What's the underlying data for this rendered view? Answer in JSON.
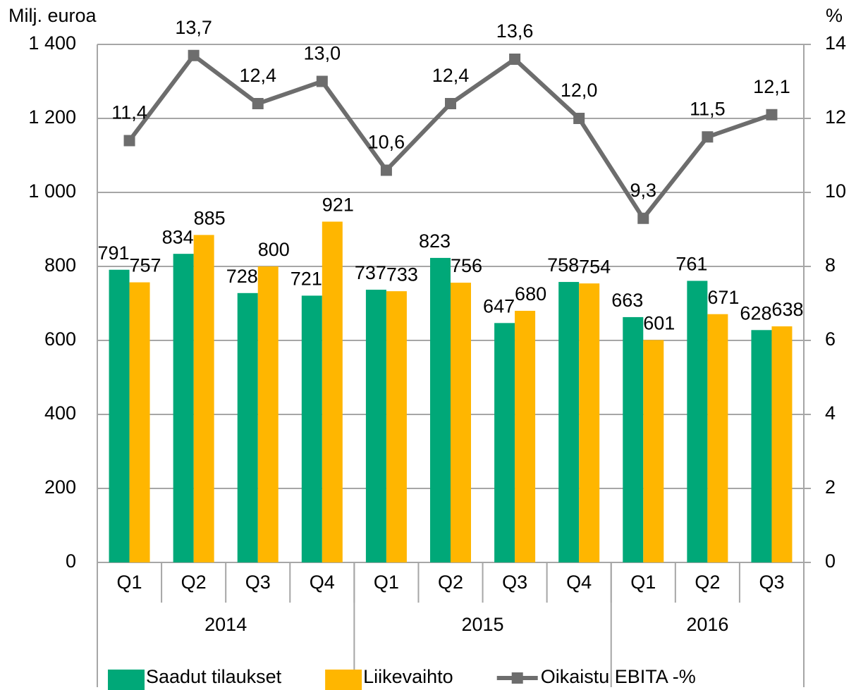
{
  "chart_data": {
    "type": "bar_line",
    "y_label": "Milj. euroa",
    "y2_label": "%",
    "categories": [
      "Q1",
      "Q2",
      "Q3",
      "Q4",
      "Q1",
      "Q2",
      "Q3",
      "Q4",
      "Q1",
      "Q2",
      "Q3"
    ],
    "category_groups": [
      {
        "label": "2014",
        "span": 4
      },
      {
        "label": "2015",
        "span": 4
      },
      {
        "label": "2016",
        "span": 3
      }
    ],
    "series": [
      {
        "name": "Saadut tilaukset",
        "type": "bar",
        "color": "#00a878",
        "values": [
          791,
          834,
          728,
          721,
          737,
          823,
          647,
          758,
          663,
          761,
          628
        ]
      },
      {
        "name": "Liikevaihto",
        "type": "bar",
        "color": "#ffb600",
        "values": [
          757,
          885,
          800,
          921,
          733,
          756,
          680,
          754,
          601,
          671,
          638
        ]
      },
      {
        "name": "Oikaistu EBITA -%",
        "type": "line",
        "axis": "y2",
        "color": "#6d6d6d",
        "values": [
          11.4,
          13.7,
          12.4,
          13.0,
          10.6,
          12.4,
          13.6,
          12.0,
          9.3,
          11.5,
          12.1
        ],
        "value_labels": [
          "11,4",
          "13,7",
          "12,4",
          "13,0",
          "10,6",
          "12,4",
          "13,6",
          "12,0",
          "9,3",
          "11,5",
          "12,1"
        ]
      }
    ],
    "ylim": [
      0,
      1400
    ],
    "yticks": [
      0,
      200,
      400,
      600,
      800,
      {
        "value": 1000,
        "label": "1 000"
      },
      {
        "value": 1200,
        "label": "1 200"
      },
      {
        "value": 1400,
        "label": "1 400"
      }
    ],
    "y2lim": [
      0,
      14
    ],
    "y2ticks": [
      0,
      2,
      4,
      6,
      8,
      10,
      12,
      14
    ],
    "grid": true,
    "legend": "bottom"
  }
}
